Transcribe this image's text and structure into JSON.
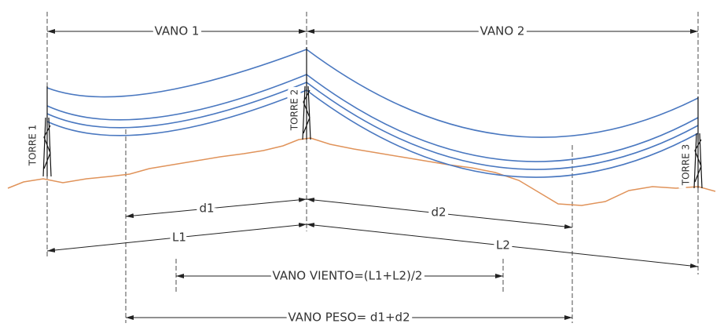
{
  "labels": {
    "vano1": "VANO 1",
    "vano2": "VANO 2",
    "torre1": "TORRE 1",
    "torre2": "TORRE 2",
    "torre3": "TORRE 3",
    "d1": "d1",
    "d2": "d2",
    "l1": "L1",
    "l2": "L2",
    "vano_viento": "VANO VIENTO=(L1+L2)/2",
    "vano_peso": "VANO PESO= d1+d2"
  }
}
